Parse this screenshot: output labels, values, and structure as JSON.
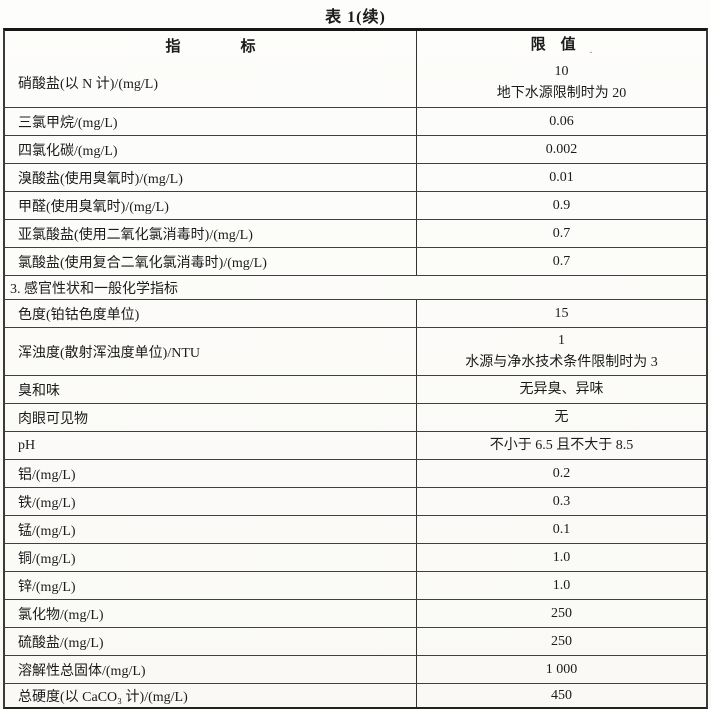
{
  "page": {
    "title": "表 1(续)"
  },
  "table": {
    "columns": [
      {
        "label": "指　　　　标"
      },
      {
        "label": "限　值"
      }
    ],
    "header_mark": ".",
    "rows": [
      {
        "type": "item",
        "indicator": "硝酸盐(以 N 计)/(mg/L)",
        "limit": [
          "10",
          "地下水源限制时为 20"
        ]
      },
      {
        "type": "item",
        "indicator": "三氯甲烷/(mg/L)",
        "limit": [
          "0.06"
        ]
      },
      {
        "type": "item",
        "indicator": "四氯化碳/(mg/L)",
        "limit": [
          "0.002"
        ]
      },
      {
        "type": "item",
        "indicator": "溴酸盐(使用臭氧时)/(mg/L)",
        "limit": [
          "0.01"
        ]
      },
      {
        "type": "item",
        "indicator": "甲醛(使用臭氧时)/(mg/L)",
        "limit": [
          "0.9"
        ]
      },
      {
        "type": "item",
        "indicator": "亚氯酸盐(使用二氧化氯消毒时)/(mg/L)",
        "limit": [
          "0.7"
        ]
      },
      {
        "type": "item",
        "indicator": "氯酸盐(使用复合二氧化氯消毒时)/(mg/L)",
        "limit": [
          "0.7"
        ]
      },
      {
        "type": "section",
        "label": "3. 感官性状和一般化学指标"
      },
      {
        "type": "item",
        "indicator": "色度(铂钴色度单位)",
        "limit": [
          "15"
        ]
      },
      {
        "type": "item",
        "indicator": "浑浊度(散射浑浊度单位)/NTU",
        "limit": [
          "1",
          "水源与净水技术条件限制时为 3"
        ]
      },
      {
        "type": "item",
        "indicator": "臭和味",
        "limit": [
          "无异臭、异味"
        ]
      },
      {
        "type": "item",
        "indicator": "肉眼可见物",
        "limit": [
          "无"
        ]
      },
      {
        "type": "item",
        "indicator": "pH",
        "limit": [
          "不小于 6.5 且不大于 8.5"
        ]
      },
      {
        "type": "item",
        "indicator": "铝/(mg/L)",
        "limit": [
          "0.2"
        ]
      },
      {
        "type": "item",
        "indicator": "铁/(mg/L)",
        "limit": [
          "0.3"
        ]
      },
      {
        "type": "item",
        "indicator": "锰/(mg/L)",
        "limit": [
          "0.1"
        ]
      },
      {
        "type": "item",
        "indicator": "铜/(mg/L)",
        "limit": [
          "1.0"
        ]
      },
      {
        "type": "item",
        "indicator": "锌/(mg/L)",
        "limit": [
          "1.0"
        ]
      },
      {
        "type": "item",
        "indicator": "氯化物/(mg/L)",
        "limit": [
          "250"
        ]
      },
      {
        "type": "item",
        "indicator": "硫酸盐/(mg/L)",
        "limit": [
          "250"
        ]
      },
      {
        "type": "item",
        "indicator": "溶解性总固体/(mg/L)",
        "limit": [
          "1 000"
        ]
      },
      {
        "type": "item",
        "indicator": "总硬度(以 CaCO₃ 计)/(mg/L)",
        "limit": [
          "450"
        ]
      }
    ]
  }
}
